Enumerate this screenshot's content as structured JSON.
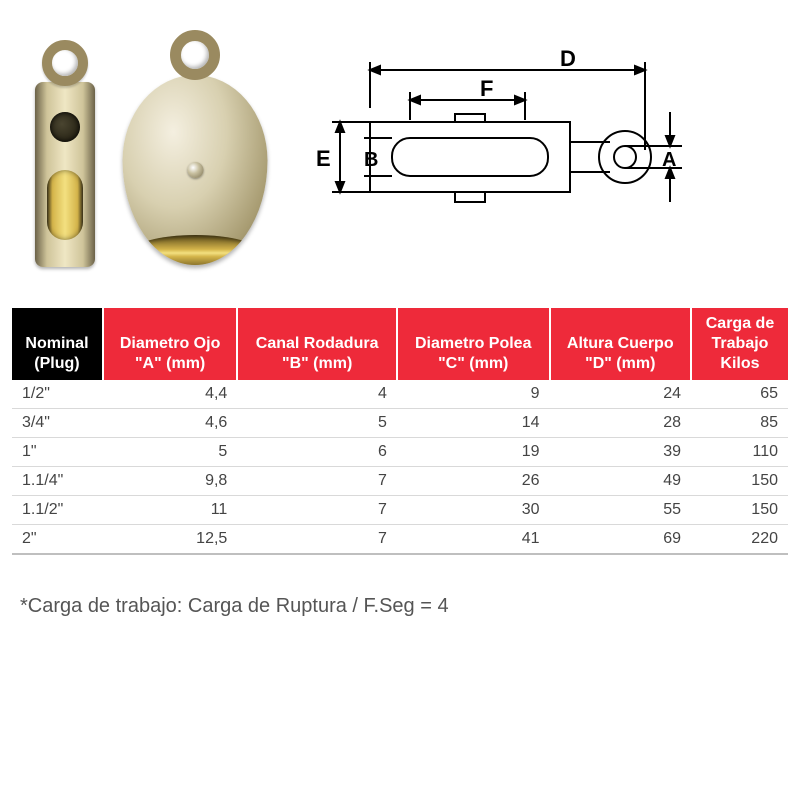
{
  "diagram": {
    "labels": {
      "A": "A",
      "B": "B",
      "D": "D",
      "E": "E",
      "F": "F"
    },
    "stroke": "#000000",
    "stroke_width": 2
  },
  "table": {
    "header_first_bg": "#000000",
    "header_rest_bg": "#ee2a3a",
    "header_text_color": "#ffffff",
    "row_border_color": "#d9d9d9",
    "columns": [
      {
        "line1": "Nominal",
        "line2": "(Plug)"
      },
      {
        "line1": "Diametro Ojo",
        "line2": "\"A\" (mm)"
      },
      {
        "line1": "Canal Rodadura",
        "line2": "\"B\" (mm)"
      },
      {
        "line1": "Diametro Polea",
        "line2": "\"C\" (mm)"
      },
      {
        "line1": "Altura Cuerpo",
        "line2": "\"D\" (mm)"
      },
      {
        "line1": "Carga de",
        "line2": "Trabajo",
        "line3": "Kilos"
      }
    ],
    "rows": [
      [
        "1/2\"",
        "4,4",
        "4",
        "9",
        "24",
        "65"
      ],
      [
        "3/4\"",
        "4,6",
        "5",
        "14",
        "28",
        "85"
      ],
      [
        "1\"",
        "5",
        "6",
        "19",
        "39",
        "110"
      ],
      [
        "1.1/4\"",
        "9,8",
        "7",
        "26",
        "49",
        "150"
      ],
      [
        "1.1/2\"",
        "11",
        "7",
        "30",
        "55",
        "150"
      ],
      [
        "2\"",
        "12,5",
        "7",
        "41",
        "69",
        "220"
      ]
    ]
  },
  "footnote": "*Carga de trabajo: Carga de Ruptura / F.Seg = 4"
}
